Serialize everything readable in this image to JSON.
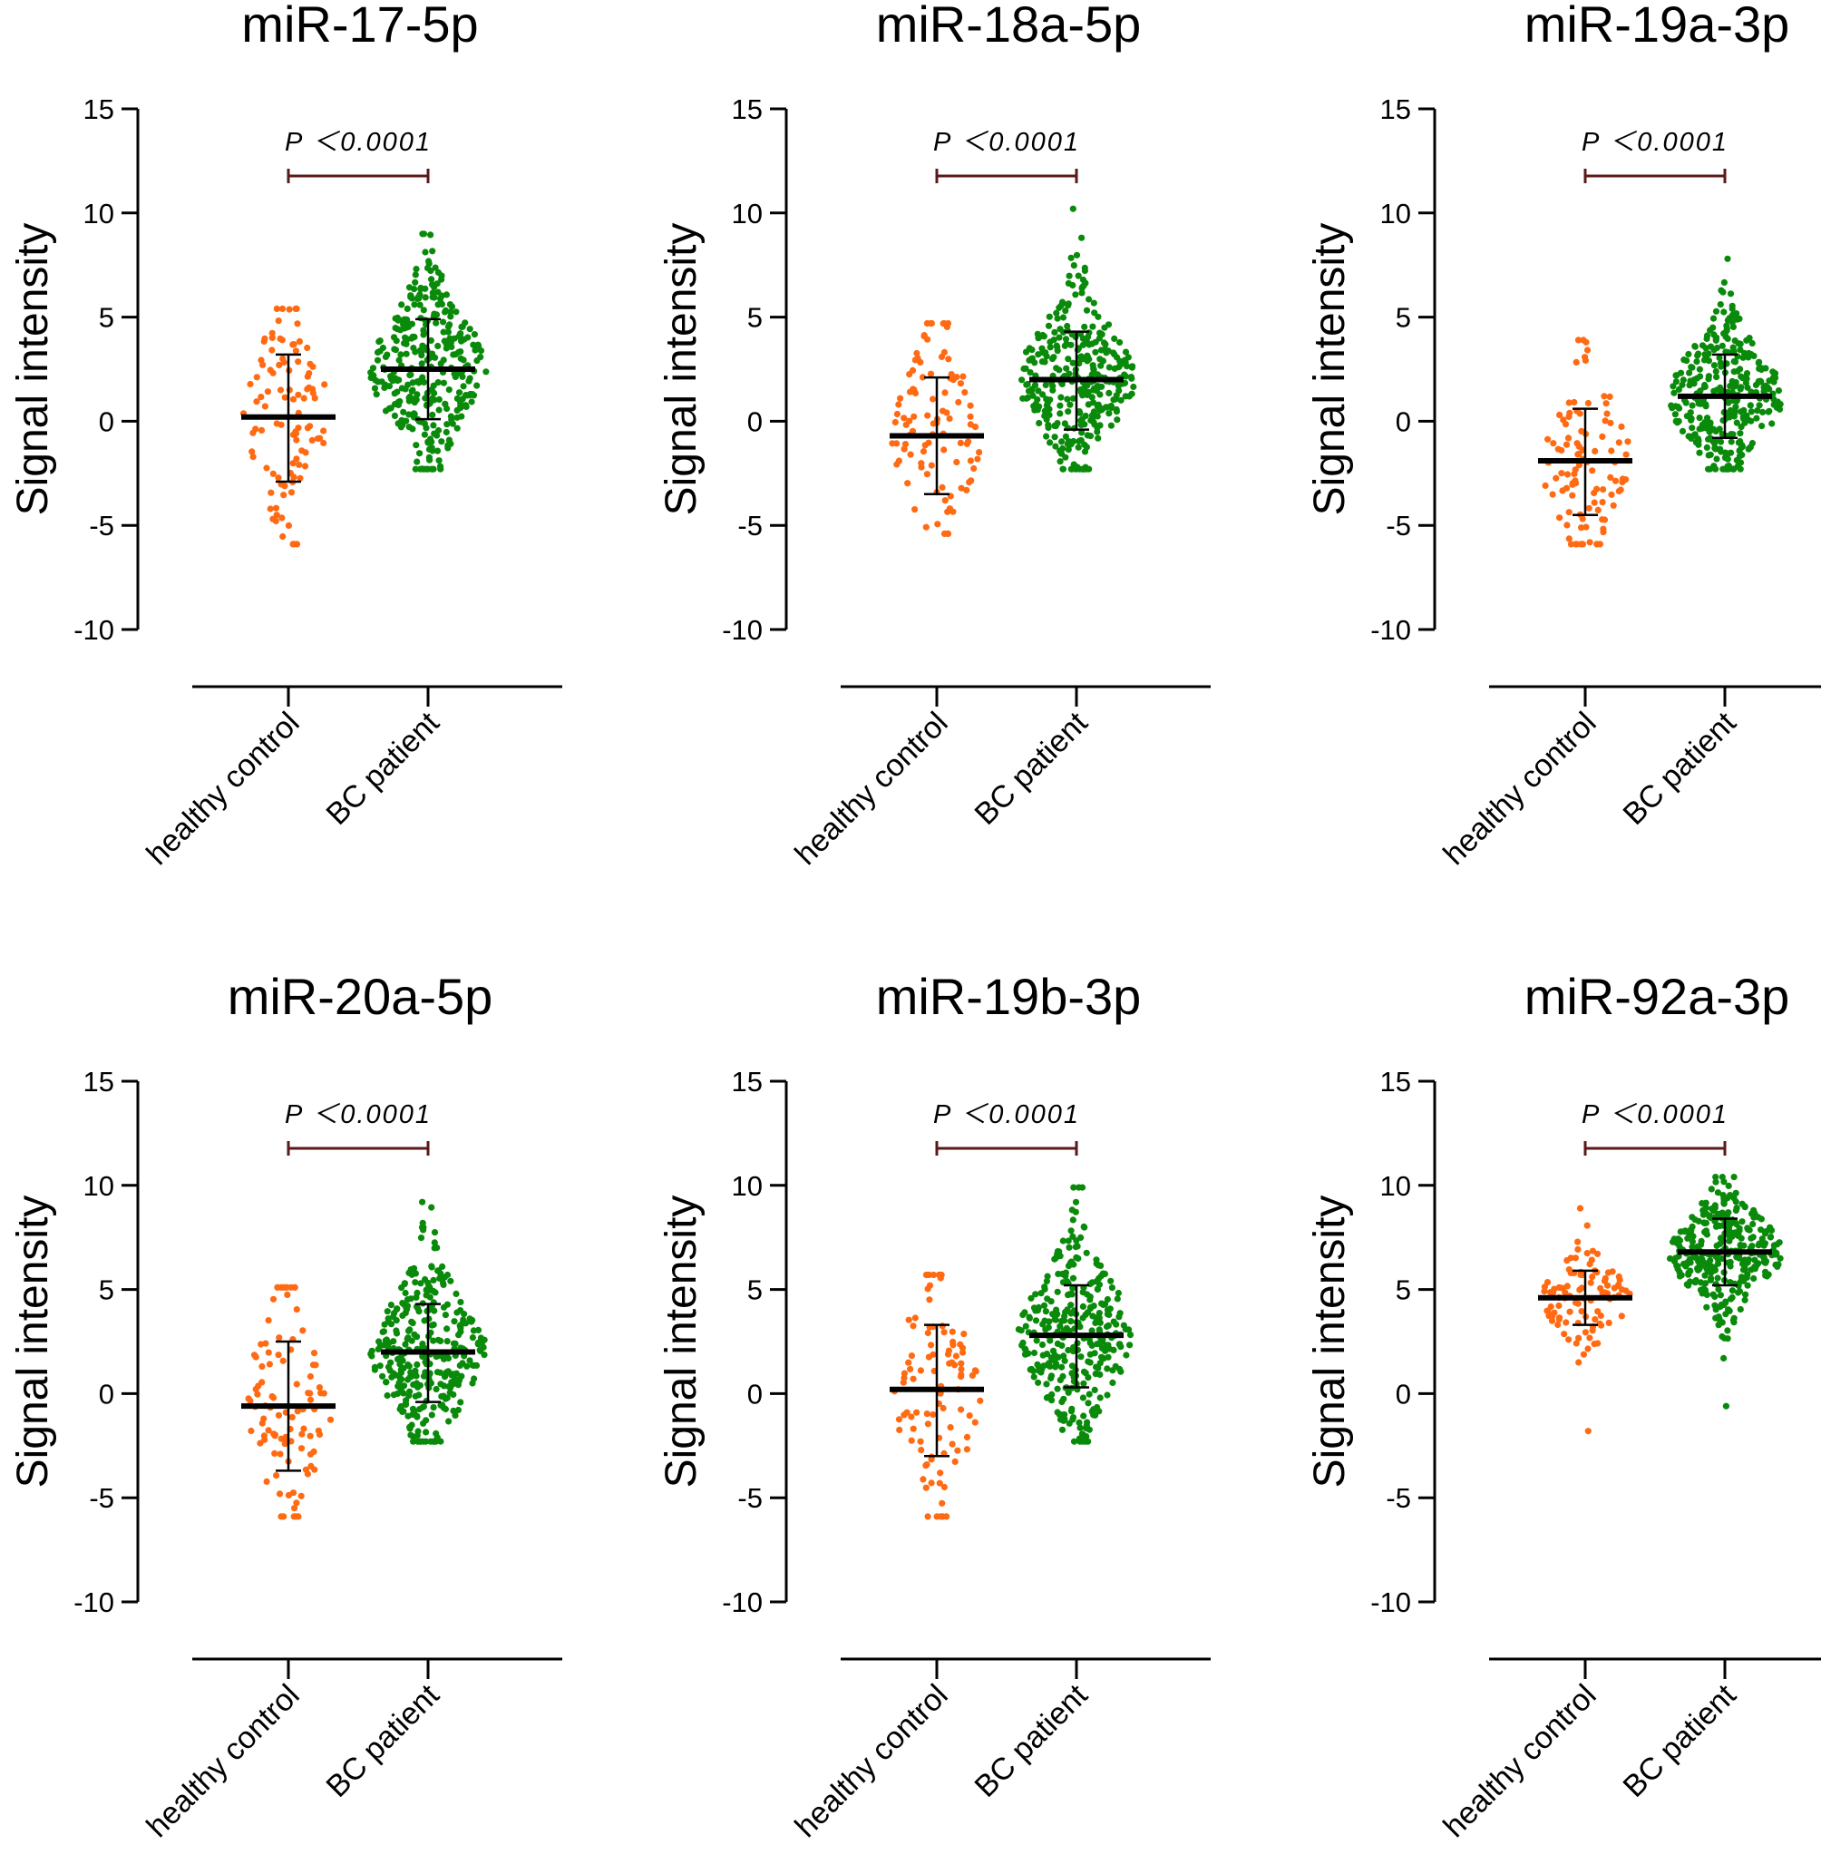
{
  "chart_data": [
    {
      "type": "scatter",
      "title": "miR-17-5p",
      "ylabel": "Signal intensity",
      "ylim": [
        -10,
        15
      ],
      "yticks": [
        15,
        10,
        5,
        0,
        -5,
        -10
      ],
      "categories": [
        "healthy control",
        "BC patient"
      ],
      "colors": [
        "#ff6a13",
        "#0a8a0a"
      ],
      "annotation": "P ＜0.0001",
      "groups": [
        {
          "name": "healthy control",
          "mean": 0.2,
          "sd_low": -2.9,
          "sd_high": 3.2,
          "n": 100,
          "min": -5.9,
          "max": 5.4
        },
        {
          "name": "BC patient",
          "mean": 2.5,
          "sd_low": 0.1,
          "sd_high": 4.9,
          "n": 330,
          "min": -2.3,
          "max": 9.0
        }
      ]
    },
    {
      "type": "scatter",
      "title": "miR-18a-5p",
      "ylabel": "Signal intensity",
      "ylim": [
        -10,
        15
      ],
      "yticks": [
        15,
        10,
        5,
        0,
        -5,
        -10
      ],
      "categories": [
        "healthy control",
        "BC patient"
      ],
      "colors": [
        "#ff6a13",
        "#0a8a0a"
      ],
      "annotation": "P ＜0.0001",
      "groups": [
        {
          "name": "healthy control",
          "mean": -0.7,
          "sd_low": -3.5,
          "sd_high": 2.1,
          "n": 100,
          "min": -5.4,
          "max": 4.7
        },
        {
          "name": "BC patient",
          "mean": 2.0,
          "sd_low": -0.4,
          "sd_high": 4.3,
          "n": 330,
          "min": -2.3,
          "max": 10.2
        }
      ]
    },
    {
      "type": "scatter",
      "title": "miR-19a-3p",
      "ylabel": "Signal intensity",
      "ylim": [
        -10,
        15
      ],
      "yticks": [
        15,
        10,
        5,
        0,
        -5,
        -10
      ],
      "categories": [
        "healthy control",
        "BC patient"
      ],
      "colors": [
        "#ff6a13",
        "#0a8a0a"
      ],
      "annotation": "P ＜0.0001",
      "groups": [
        {
          "name": "healthy control",
          "mean": -1.9,
          "sd_low": -4.5,
          "sd_high": 0.6,
          "n": 100,
          "min": -5.9,
          "max": 3.9
        },
        {
          "name": "BC patient",
          "mean": 1.2,
          "sd_low": -0.8,
          "sd_high": 3.2,
          "n": 330,
          "min": -2.3,
          "max": 7.8
        }
      ]
    },
    {
      "type": "scatter",
      "title": "miR-20a-5p",
      "ylabel": "Signal intensity",
      "ylim": [
        -10,
        15
      ],
      "yticks": [
        15,
        10,
        5,
        0,
        -5,
        -10
      ],
      "categories": [
        "healthy control",
        "BC patient"
      ],
      "colors": [
        "#ff6a13",
        "#0a8a0a"
      ],
      "annotation": "P ＜0.0001",
      "groups": [
        {
          "name": "healthy control",
          "mean": -0.6,
          "sd_low": -3.7,
          "sd_high": 2.5,
          "n": 100,
          "min": -5.9,
          "max": 5.1
        },
        {
          "name": "BC patient",
          "mean": 2.0,
          "sd_low": -0.4,
          "sd_high": 4.3,
          "n": 330,
          "min": -2.3,
          "max": 9.2
        }
      ]
    },
    {
      "type": "scatter",
      "title": "miR-19b-3p",
      "ylabel": "Signal intensity",
      "ylim": [
        -10,
        15
      ],
      "yticks": [
        15,
        10,
        5,
        0,
        -5,
        -10
      ],
      "categories": [
        "healthy control",
        "BC patient"
      ],
      "colors": [
        "#ff6a13",
        "#0a8a0a"
      ],
      "annotation": "P ＜0.0001",
      "groups": [
        {
          "name": "healthy control",
          "mean": 0.2,
          "sd_low": -3.0,
          "sd_high": 3.3,
          "n": 100,
          "min": -5.9,
          "max": 5.7
        },
        {
          "name": "BC patient",
          "mean": 2.8,
          "sd_low": 0.3,
          "sd_high": 5.2,
          "n": 330,
          "min": -2.3,
          "max": 9.9
        }
      ]
    },
    {
      "type": "scatter",
      "title": "miR-92a-3p",
      "ylabel": "Signal intensity",
      "ylim": [
        -10,
        15
      ],
      "yticks": [
        15,
        10,
        5,
        0,
        -5,
        -10
      ],
      "categories": [
        "healthy control",
        "BC patient"
      ],
      "colors": [
        "#ff6a13",
        "#0a8a0a"
      ],
      "annotation": "P ＜0.0001",
      "groups": [
        {
          "name": "healthy control",
          "mean": 4.6,
          "sd_low": 3.3,
          "sd_high": 5.9,
          "n": 100,
          "min": -1.8,
          "max": 8.9
        },
        {
          "name": "BC patient",
          "mean": 6.8,
          "sd_low": 5.2,
          "sd_high": 8.4,
          "n": 330,
          "min": -0.6,
          "max": 10.4
        }
      ]
    }
  ]
}
